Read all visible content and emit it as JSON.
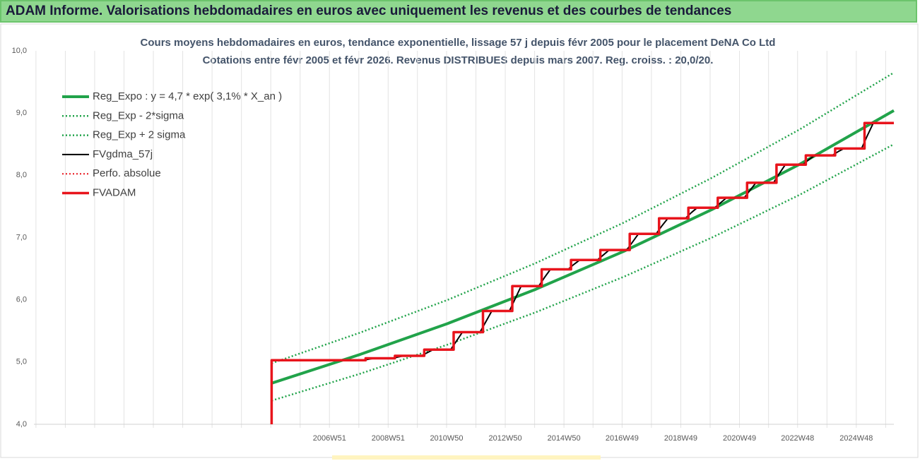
{
  "header": {
    "title": "ADAM Informe. Valorisations hebdomadaires en euros avec uniquement les revenus et des courbes de tendances"
  },
  "chart_data": {
    "type": "line",
    "title": "Cours moyens hebdomadaires en euros, tendance exponentielle, lissage 57 j depuis févr 2005 pour le placement DeNA Co Ltd",
    "subtitle": "Cotations entre févr 2005 et févr 2026. Revenus DISTRIBUES depuis mars 2007. Reg. croiss. : 20,0/20.",
    "xlim": [
      1996.9,
      2026.2
    ],
    "xticks": [
      {
        "value": 2006.97,
        "label": "2006W51"
      },
      {
        "value": 2008.97,
        "label": "2008W51"
      },
      {
        "value": 2010.96,
        "label": "2010W50"
      },
      {
        "value": 2012.96,
        "label": "2012W50"
      },
      {
        "value": 2014.96,
        "label": "2014W50"
      },
      {
        "value": 2016.94,
        "label": "2016W49"
      },
      {
        "value": 2018.94,
        "label": "2018W49"
      },
      {
        "value": 2020.94,
        "label": "2020W49"
      },
      {
        "value": 2022.92,
        "label": "2022W48"
      },
      {
        "value": 2024.92,
        "label": "2024W48"
      }
    ],
    "ylim": [
      4,
      10
    ],
    "yticks": [
      {
        "value": 4,
        "label": "4,0"
      },
      {
        "value": 5,
        "label": "5,0"
      },
      {
        "value": 6,
        "label": "6,0"
      },
      {
        "value": 7,
        "label": "7,0"
      },
      {
        "value": 8,
        "label": "8,0"
      },
      {
        "value": 9,
        "label": "9,0"
      },
      {
        "value": 10,
        "label": "10,0"
      }
    ],
    "xgrid": true,
    "legend": "upper left",
    "series": [
      {
        "name": "Reg_Expo : y = 4,7 * exp( 3,1% *  X_an )",
        "color": "#21a34a",
        "style": "solid",
        "width": 4,
        "x": [
          2005.0,
          2008,
          2011,
          2014,
          2017,
          2020,
          2023,
          2026.2
        ],
        "values": [
          4.66,
          5.12,
          5.62,
          6.17,
          6.78,
          7.45,
          8.18,
          9.04
        ]
      },
      {
        "name": "Reg_Exp - 2*sigma",
        "color": "#21a34a",
        "style": "dotted",
        "width": 2.5,
        "x": [
          2005.0,
          2008,
          2011,
          2014,
          2017,
          2020,
          2023,
          2026.2
        ],
        "values": [
          4.38,
          4.81,
          5.28,
          5.8,
          6.37,
          7.0,
          7.69,
          8.5
        ]
      },
      {
        "name": "Reg_Exp + 2 sigma",
        "color": "#21a34a",
        "style": "dotted",
        "width": 2.5,
        "x": [
          2005.0,
          2008,
          2011,
          2014,
          2017,
          2020,
          2023,
          2026.2
        ],
        "values": [
          4.98,
          5.47,
          6.0,
          6.59,
          7.24,
          7.96,
          8.74,
          9.65
        ]
      },
      {
        "name": "Perfo. absolue",
        "color": "#e8141c",
        "style": "dotted",
        "width": 2,
        "x": [
          2005.0,
          2005.0,
          2008.2,
          2008.2,
          2009.2,
          2009.2,
          2010.2,
          2010.2,
          2011.2,
          2011.2,
          2012.2,
          2012.2,
          2013.2,
          2013.2,
          2014.2,
          2014.2,
          2015.2,
          2015.2,
          2016.2,
          2016.2,
          2017.2,
          2017.2,
          2018.2,
          2018.2,
          2019.2,
          2019.2,
          2020.2,
          2020.2,
          2021.2,
          2021.2,
          2022.2,
          2022.2,
          2023.2,
          2023.2,
          2024.2,
          2024.2,
          2025.2,
          2025.2,
          2026.2
        ],
        "values": [
          4.0,
          5.03,
          5.03,
          5.06,
          5.06,
          5.1,
          5.1,
          5.2,
          5.2,
          5.48,
          5.48,
          5.82,
          5.82,
          6.22,
          6.22,
          6.49,
          6.49,
          6.64,
          6.64,
          6.8,
          6.8,
          7.06,
          7.06,
          7.31,
          7.31,
          7.48,
          7.48,
          7.64,
          7.64,
          7.88,
          7.88,
          8.17,
          8.17,
          8.32,
          8.32,
          8.43,
          8.43,
          8.84,
          8.84
        ]
      },
      {
        "name": "FVgdma_57j",
        "color": "#000000",
        "style": "solid",
        "width": 2,
        "x": [
          2005.0,
          2008.1,
          2008.3,
          2008.5,
          2009.1,
          2009.3,
          2009.5,
          2010.1,
          2010.3,
          2010.5,
          2011.1,
          2011.3,
          2011.5,
          2012.1,
          2012.3,
          2012.5,
          2013.1,
          2013.3,
          2013.5,
          2014.1,
          2014.3,
          2014.5,
          2015.1,
          2015.3,
          2015.5,
          2016.1,
          2016.3,
          2016.5,
          2017.1,
          2017.3,
          2017.5,
          2018.1,
          2018.3,
          2018.5,
          2019.1,
          2019.3,
          2019.5,
          2020.1,
          2020.3,
          2020.5,
          2021.1,
          2021.3,
          2021.5,
          2022.1,
          2022.3,
          2022.5,
          2023.1,
          2023.3,
          2023.5,
          2024.1,
          2024.3,
          2024.5,
          2025.1,
          2025.3,
          2025.5,
          2026.2
        ],
        "values": [
          5.03,
          5.03,
          5.045,
          5.06,
          5.06,
          5.08,
          5.1,
          5.1,
          5.15,
          5.2,
          5.2,
          5.34,
          5.48,
          5.48,
          5.65,
          5.82,
          5.82,
          6.02,
          6.22,
          6.22,
          6.36,
          6.49,
          6.49,
          6.57,
          6.64,
          6.64,
          6.72,
          6.8,
          6.8,
          6.93,
          7.06,
          7.06,
          7.19,
          7.31,
          7.31,
          7.4,
          7.48,
          7.48,
          7.56,
          7.64,
          7.64,
          7.76,
          7.88,
          7.88,
          8.03,
          8.17,
          8.17,
          8.25,
          8.32,
          8.32,
          8.38,
          8.43,
          8.43,
          8.64,
          8.84,
          8.84
        ]
      },
      {
        "name": "FVADAM",
        "color": "#e8141c",
        "style": "solid",
        "width": 3.5,
        "x": [
          2005.0,
          2005.0,
          2008.2,
          2008.2,
          2009.2,
          2009.2,
          2010.2,
          2010.2,
          2011.2,
          2011.2,
          2012.2,
          2012.2,
          2013.2,
          2013.2,
          2014.2,
          2014.2,
          2015.2,
          2015.2,
          2016.2,
          2016.2,
          2017.2,
          2017.2,
          2018.2,
          2018.2,
          2019.2,
          2019.2,
          2020.2,
          2020.2,
          2021.2,
          2021.2,
          2022.2,
          2022.2,
          2023.2,
          2023.2,
          2024.2,
          2024.2,
          2025.2,
          2025.2,
          2026.2
        ],
        "values": [
          4.0,
          5.03,
          5.03,
          5.06,
          5.06,
          5.1,
          5.1,
          5.2,
          5.2,
          5.48,
          5.48,
          5.82,
          5.82,
          6.22,
          6.22,
          6.49,
          6.49,
          6.64,
          6.64,
          6.8,
          6.8,
          7.06,
          7.06,
          7.31,
          7.31,
          7.48,
          7.48,
          7.64,
          7.64,
          7.88,
          7.88,
          8.17,
          8.17,
          8.32,
          8.32,
          8.43,
          8.43,
          8.84,
          8.84
        ]
      }
    ],
    "legend_order": [
      0,
      1,
      2,
      4,
      3,
      5
    ]
  }
}
